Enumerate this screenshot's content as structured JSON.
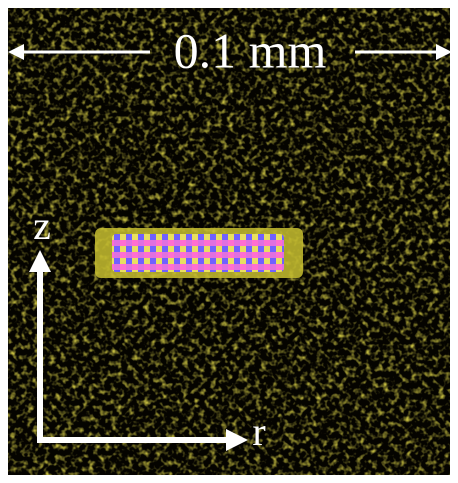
{
  "scale_bar": {
    "label": "0.1 mm"
  },
  "axes": {
    "vertical": "z",
    "horizontal": "r"
  }
}
